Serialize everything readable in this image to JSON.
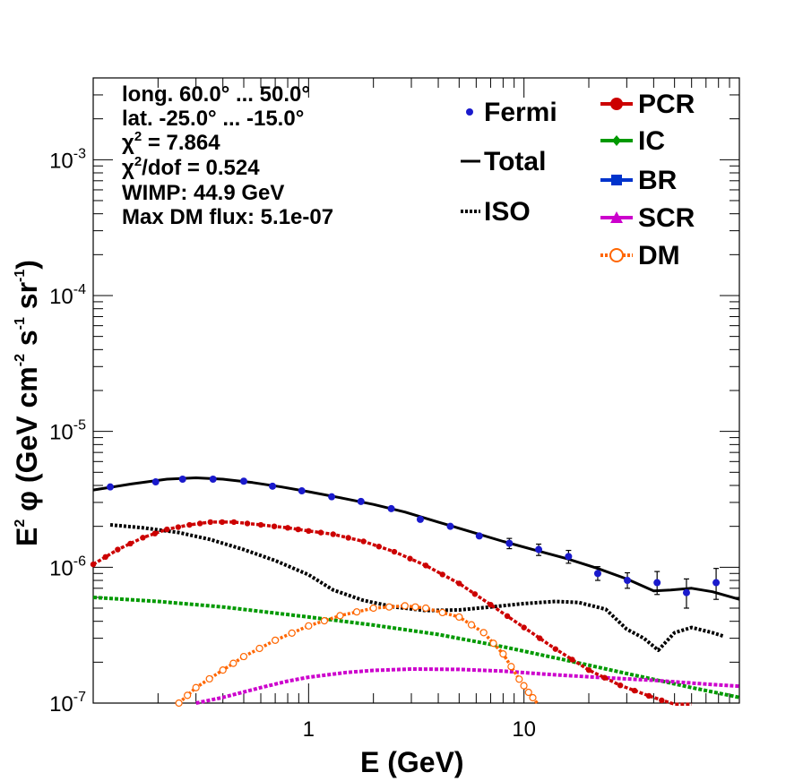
{
  "chart_data": {
    "type": "line",
    "xlabel": "E (GeV)",
    "ylabel_main": "E",
    "ylabel_sup": "2",
    "ylabel_rest": " φ (GeV cm",
    "ylabel_sup2": "-2",
    "ylabel_rest2": " s",
    "ylabel_sup3": "-1",
    "ylabel_rest3": " sr",
    "ylabel_sup4": "-1",
    "ylabel_close": ")",
    "x_scale": "log",
    "y_scale": "log",
    "xlim": [
      0.1,
      100
    ],
    "ylim": [
      1e-07,
      0.004
    ],
    "x_ticks": [
      {
        "value": 1,
        "label": "1"
      },
      {
        "value": 10,
        "label": "10"
      }
    ],
    "y_ticks": [
      {
        "value": 1e-07,
        "base": "10",
        "exp": "-7"
      },
      {
        "value": 1e-06,
        "base": "10",
        "exp": "-6"
      },
      {
        "value": 1e-05,
        "base": "10",
        "exp": "-5"
      },
      {
        "value": 0.0001,
        "base": "10",
        "exp": "-4"
      },
      {
        "value": 0.001,
        "base": "10",
        "exp": "-3"
      }
    ],
    "info_lines": [
      {
        "text": "long. 60.0° ... 50.0°"
      },
      {
        "text": "lat. -25.0° ... -15.0°"
      },
      {
        "pre": "χ",
        "sup": "2",
        "post": " = 7.864"
      },
      {
        "pre": "χ",
        "sup": "2",
        "post": "/dof = 0.524"
      },
      {
        "text": "WIMP: 44.9 GeV"
      },
      {
        "text": "Max DM flux: 5.1e-07"
      }
    ],
    "legend_left": [
      {
        "name": "Fermi",
        "style": "points"
      },
      {
        "name": "Total",
        "style": "solid"
      },
      {
        "name": "ISO",
        "style": "dotted"
      }
    ],
    "legend_right": [
      {
        "name": "PCR",
        "color": "#cc0000",
        "marker": "circle"
      },
      {
        "name": "IC",
        "color": "#009900",
        "marker": "diamond"
      },
      {
        "name": "BR",
        "color": "#0033cc",
        "marker": "square"
      },
      {
        "name": "SCR",
        "color": "#cc00cc",
        "marker": "triangle"
      },
      {
        "name": "DM",
        "color": "#ff6600",
        "marker": "open-circle"
      }
    ],
    "fermi": {
      "color": "#1a1acc",
      "x": [
        0.12,
        0.195,
        0.26,
        0.36,
        0.5,
        0.68,
        0.93,
        1.28,
        1.75,
        2.42,
        3.3,
        4.55,
        6.2,
        8.55,
        11.7,
        16.1,
        22.0,
        30.2,
        41.5,
        56.8,
        78.0
      ],
      "y": [
        3.9e-06,
        4.25e-06,
        4.45e-06,
        4.45e-06,
        4.3e-06,
        3.95e-06,
        3.65e-06,
        3.3e-06,
        3.05e-06,
        2.7e-06,
        2.25e-06,
        2e-06,
        1.7e-06,
        1.5e-06,
        1.35e-06,
        1.2e-06,
        9e-07,
        8e-07,
        7.7e-07,
        6.5e-07,
        7.7e-07
      ],
      "err_lo": [
        0,
        0,
        0,
        0,
        0,
        0,
        0,
        0,
        0,
        0,
        0,
        0,
        0,
        1.3e-07,
        1.3e-07,
        1.3e-07,
        1e-07,
        1e-07,
        1.4e-07,
        1.5e-07,
        1.9e-07
      ],
      "err_hi": [
        0,
        0,
        0,
        0,
        0,
        0,
        0,
        0,
        0,
        0,
        0,
        0,
        0,
        1.3e-07,
        1.3e-07,
        1.3e-07,
        1.1e-07,
        1.1e-07,
        1.6e-07,
        1.7e-07,
        2.1e-07
      ]
    },
    "total": {
      "color": "#000000",
      "x": [
        0.1,
        0.15,
        0.22,
        0.3,
        0.4,
        0.55,
        0.75,
        1.0,
        1.4,
        2.0,
        2.8,
        4.0,
        5.5,
        8.0,
        11.0,
        16.0,
        22.0,
        30.0,
        40.0,
        48.0,
        60.0,
        75.0,
        100.0
      ],
      "y": [
        3.7e-06,
        4.1e-06,
        4.45e-06,
        4.55e-06,
        4.45e-06,
        4.2e-06,
        3.9e-06,
        3.6e-06,
        3.25e-06,
        2.9e-06,
        2.55e-06,
        2.15e-06,
        1.85e-06,
        1.55e-06,
        1.35e-06,
        1.15e-06,
        9.8e-07,
        8.2e-07,
        6.7e-07,
        6.8e-07,
        7e-07,
        6.6e-07,
        5.8e-07
      ]
    },
    "iso": {
      "color": "#000000",
      "x": [
        0.12,
        0.17,
        0.25,
        0.35,
        0.5,
        0.7,
        1.0,
        1.3,
        1.8,
        2.5,
        3.5,
        5.0,
        7.0,
        10.0,
        14.0,
        18.0,
        24.0,
        30.0,
        36.0,
        42.0,
        50.0,
        60.0,
        75.0,
        85.0
      ],
      "y": [
        2.05e-06,
        1.95e-06,
        1.8e-06,
        1.6e-06,
        1.35e-06,
        1.12e-06,
        8.8e-07,
        6.8e-07,
        5.7e-07,
        5.1e-07,
        4.8e-07,
        4.85e-07,
        5.1e-07,
        5.4e-07,
        5.6e-07,
        5.5e-07,
        4.9e-07,
        3.5e-07,
        3e-07,
        2.45e-07,
        3.3e-07,
        3.6e-07,
        3.3e-07,
        3.1e-07
      ]
    },
    "pcr": {
      "color": "#cc0000",
      "x": [
        0.1,
        0.13,
        0.17,
        0.22,
        0.28,
        0.35,
        0.45,
        0.6,
        0.8,
        1.0,
        1.3,
        1.8,
        2.5,
        3.5,
        5.0,
        7.0,
        10.0,
        14.0,
        20.0,
        28.0,
        38.0,
        50.0,
        60.0
      ],
      "y": [
        1.05e-06,
        1.35e-06,
        1.65e-06,
        1.9e-06,
        2.05e-06,
        2.15e-06,
        2.15e-06,
        2.05e-06,
        1.95e-06,
        1.85e-06,
        1.75e-06,
        1.55e-06,
        1.3e-06,
        1.03e-06,
        7.6e-07,
        5.3e-07,
        3.6e-07,
        2.5e-07,
        1.75e-07,
        1.35e-07,
        1.13e-07,
        9.7e-08,
        8.5e-08
      ]
    },
    "ic": {
      "color": "#009900",
      "x": [
        0.1,
        0.2,
        0.4,
        0.7,
        1.0,
        2.0,
        4.0,
        8.0,
        15.0,
        30.0,
        60.0,
        100.0
      ],
      "y": [
        6e-07,
        5.6e-07,
        5.1e-07,
        4.6e-07,
        4.3e-07,
        3.75e-07,
        3.2e-07,
        2.6e-07,
        2.1e-07,
        1.65e-07,
        1.3e-07,
        1.1e-07
      ]
    },
    "scr": {
      "color": "#cc00cc",
      "x": [
        0.3,
        0.4,
        0.6,
        0.8,
        1.0,
        1.5,
        2.0,
        3.0,
        5.0,
        8.0,
        12.0,
        20.0,
        40.0,
        70.0,
        100.0
      ],
      "y": [
        1e-07,
        1.1e-07,
        1.3e-07,
        1.45e-07,
        1.55e-07,
        1.68e-07,
        1.74e-07,
        1.78e-07,
        1.77e-07,
        1.72e-07,
        1.64e-07,
        1.56e-07,
        1.47e-07,
        1.38e-07,
        1.33e-07
      ]
    },
    "dm": {
      "color": "#ff6600",
      "x": [
        0.25,
        0.3,
        0.4,
        0.5,
        0.7,
        1.0,
        1.4,
        2.0,
        2.8,
        3.5,
        5.0,
        6.5,
        8.0,
        9.5,
        10.5,
        11.5
      ],
      "y": [
        1e-07,
        1.3e-07,
        1.75e-07,
        2.2e-07,
        2.9e-07,
        3.7e-07,
        4.4e-07,
        5e-07,
        5.2e-07,
        5e-07,
        4.3e-07,
        3.3e-07,
        2.3e-07,
        1.5e-07,
        1.2e-07,
        1e-07
      ]
    }
  }
}
